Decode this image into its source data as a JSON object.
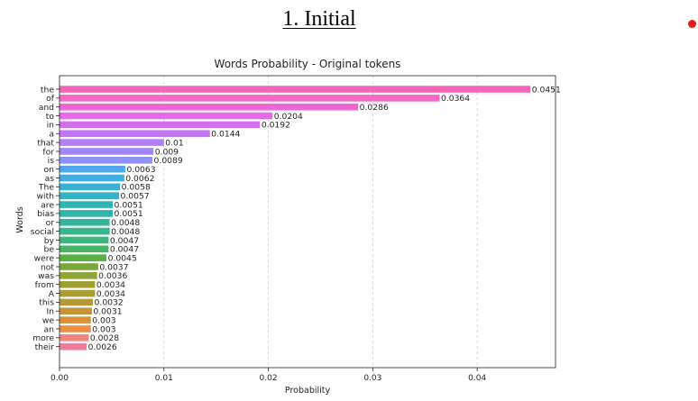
{
  "slide": {
    "heading": "1. Initial"
  },
  "colors": {
    "red_dot": "#e0201c"
  },
  "chart_data": {
    "type": "bar",
    "orientation": "horizontal",
    "title": "Words Probability - Original tokens",
    "xlabel": "Probability",
    "ylabel": "Words",
    "xlim": [
      0,
      0.0475
    ],
    "xticks": [
      0.0,
      0.01,
      0.02,
      0.03,
      0.04
    ],
    "xtick_labels": [
      "0.00",
      "0.01",
      "0.02",
      "0.03",
      "0.04"
    ],
    "grid": "vertical-dashed",
    "categories": [
      "the",
      "of",
      "and",
      "to",
      "in",
      "a",
      "that",
      "for",
      "is",
      "on",
      "as",
      "The",
      "with",
      "are",
      "bias",
      "or",
      "social",
      "by",
      "be",
      "were",
      "not",
      "was",
      "from",
      "A",
      "this",
      "In",
      "we",
      "an",
      "more",
      "their"
    ],
    "values": [
      0.0451,
      0.0364,
      0.0286,
      0.0204,
      0.0192,
      0.0144,
      0.01,
      0.009,
      0.0089,
      0.0063,
      0.0062,
      0.0058,
      0.0057,
      0.0051,
      0.0051,
      0.0048,
      0.0048,
      0.0047,
      0.0047,
      0.0045,
      0.0037,
      0.0036,
      0.0034,
      0.0034,
      0.0032,
      0.0031,
      0.003,
      0.003,
      0.0028,
      0.0026
    ],
    "value_labels": [
      "0.0451",
      "0.0364",
      "0.0286",
      "0.0204",
      "0.0192",
      "0.0144",
      "0.01",
      "0.009",
      "0.0089",
      "0.0063",
      "0.0062",
      "0.0058",
      "0.0057",
      "0.0051",
      "0.0051",
      "0.0048",
      "0.0048",
      "0.0047",
      "0.0047",
      "0.0045",
      "0.0037",
      "0.0036",
      "0.0034",
      "0.0034",
      "0.0032",
      "0.0031",
      "0.003",
      "0.003",
      "0.0028",
      "0.0026"
    ],
    "bar_colors": [
      "#f565b8",
      "#f667c6",
      "#f066d6",
      "#e46ae6",
      "#d46df2",
      "#c574f6",
      "#b47ef7",
      "#a286f7",
      "#8e91f6",
      "#4fa8ec",
      "#43acdf",
      "#3ab0d3",
      "#33b2c4",
      "#30b4b6",
      "#2fb5aa",
      "#31b69b",
      "#34b78b",
      "#3ab77a",
      "#45b565",
      "#55b241",
      "#79a93a",
      "#8ea637",
      "#a0a135",
      "#ab9d35",
      "#b69a37",
      "#c69438",
      "#d8903a",
      "#ec8c45",
      "#f4827e",
      "#f57a9a"
    ]
  }
}
